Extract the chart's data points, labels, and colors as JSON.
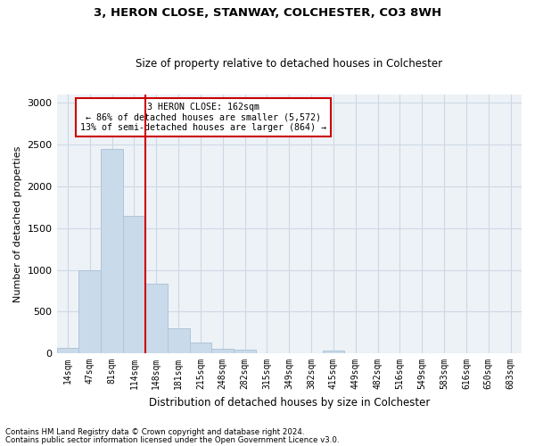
{
  "title1": "3, HERON CLOSE, STANWAY, COLCHESTER, CO3 8WH",
  "title2": "Size of property relative to detached houses in Colchester",
  "xlabel": "Distribution of detached houses by size in Colchester",
  "ylabel": "Number of detached properties",
  "footnote1": "Contains HM Land Registry data © Crown copyright and database right 2024.",
  "footnote2": "Contains public sector information licensed under the Open Government Licence v3.0.",
  "annotation_line1": "3 HERON CLOSE: 162sqm",
  "annotation_line2": "← 86% of detached houses are smaller (5,572)",
  "annotation_line3": "13% of semi-detached houses are larger (864) →",
  "property_size_bin": 4,
  "bar_color": "#c9daea",
  "bar_edge_color": "#aec6d8",
  "vline_color": "#cc0000",
  "annotation_box_color": "#cc0000",
  "grid_color": "#cdd8e4",
  "bg_color": "#edf2f7",
  "categories": [
    "14sqm",
    "47sqm",
    "81sqm",
    "114sqm",
    "148sqm",
    "181sqm",
    "215sqm",
    "248sqm",
    "282sqm",
    "315sqm",
    "349sqm",
    "382sqm",
    "415sqm",
    "449sqm",
    "482sqm",
    "516sqm",
    "549sqm",
    "583sqm",
    "616sqm",
    "650sqm",
    "683sqm"
  ],
  "n_bins": 21,
  "values": [
    65,
    1000,
    2450,
    1650,
    830,
    305,
    130,
    55,
    45,
    0,
    0,
    0,
    30,
    0,
    0,
    0,
    0,
    0,
    0,
    0,
    0
  ],
  "ylim": [
    0,
    3100
  ],
  "yticks": [
    0,
    500,
    1000,
    1500,
    2000,
    2500,
    3000
  ]
}
